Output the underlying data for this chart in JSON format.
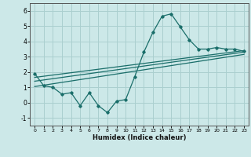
{
  "xlabel": "Humidex (Indice chaleur)",
  "xlim": [
    -0.5,
    23.5
  ],
  "ylim": [
    -1.5,
    6.5
  ],
  "yticks": [
    -1,
    0,
    1,
    2,
    3,
    4,
    5,
    6
  ],
  "xticks": [
    0,
    1,
    2,
    3,
    4,
    5,
    6,
    7,
    8,
    9,
    10,
    11,
    12,
    13,
    14,
    15,
    16,
    17,
    18,
    19,
    20,
    21,
    22,
    23
  ],
  "bg_color": "#cce8e8",
  "line_color": "#1a6e6a",
  "grid_color": "#aacfcf",
  "line1_x": [
    0,
    1,
    2,
    3,
    4,
    5,
    6,
    7,
    8,
    9,
    10,
    11,
    12,
    13,
    14,
    15,
    16,
    17,
    18,
    19,
    20,
    21,
    22,
    23
  ],
  "line1_y": [
    1.9,
    1.1,
    1.0,
    0.55,
    0.65,
    -0.2,
    0.65,
    -0.2,
    -0.65,
    0.1,
    0.2,
    1.7,
    3.3,
    4.6,
    5.65,
    5.8,
    4.95,
    4.1,
    3.5,
    3.5,
    3.6,
    3.5,
    3.5,
    3.35
  ],
  "line2_x": [
    0,
    23
  ],
  "line2_y": [
    1.05,
    3.15
  ],
  "line3_x": [
    0,
    23
  ],
  "line3_y": [
    1.4,
    3.3
  ],
  "line4_x": [
    0,
    23
  ],
  "line4_y": [
    1.65,
    3.4
  ]
}
